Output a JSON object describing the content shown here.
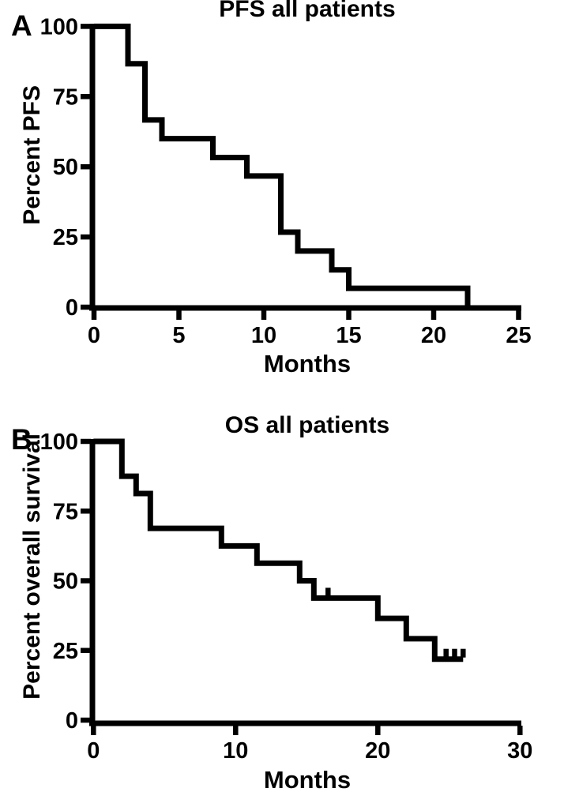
{
  "figure": {
    "background_color": "#ffffff",
    "ink_color": "#000000",
    "description": "Two-panel Kaplan-Meier survival figure"
  },
  "chart_data": [
    {
      "type": "line",
      "subtype": "kaplan-meier-step",
      "panel": "A",
      "title": "PFS all patients",
      "xlabel": "Months",
      "ylabel": "Percent PFS",
      "xlim": [
        0,
        25
      ],
      "ylim": [
        0,
        100
      ],
      "xticks": [
        0,
        5,
        10,
        15,
        20,
        25
      ],
      "yticks": [
        0,
        25,
        50,
        75,
        100
      ],
      "grid": false,
      "legend": "none",
      "start_value": 100,
      "drop_events": [
        [
          2,
          86.7
        ],
        [
          3,
          66.7
        ],
        [
          4,
          60
        ],
        [
          7,
          53.3
        ],
        [
          9,
          46.7
        ],
        [
          11,
          26.7
        ],
        [
          12,
          20
        ],
        [
          14,
          13.3
        ],
        [
          15,
          6.7
        ],
        [
          22,
          0
        ]
      ],
      "curve_end_month": 22,
      "censor_marks": []
    },
    {
      "type": "line",
      "subtype": "kaplan-meier-step",
      "panel": "B",
      "title": "OS all patients",
      "xlabel": "Months",
      "ylabel": "Percent overall survival",
      "xlim": [
        0,
        30
      ],
      "ylim": [
        0,
        100
      ],
      "xticks": [
        0,
        10,
        20,
        30
      ],
      "yticks": [
        0,
        25,
        50,
        75,
        100
      ],
      "grid": false,
      "legend": "none",
      "start_value": 100,
      "drop_events": [
        [
          2,
          87.5
        ],
        [
          3,
          81.3
        ],
        [
          4,
          68.8
        ],
        [
          9,
          62.5
        ],
        [
          11.5,
          56.3
        ],
        [
          14.5,
          50
        ],
        [
          15.5,
          43.8
        ],
        [
          20,
          36.5
        ],
        [
          22,
          29.2
        ],
        [
          24,
          21.9
        ]
      ],
      "curve_end_month": 26,
      "censor_marks": [
        [
          16.5,
          43.8
        ],
        [
          24.8,
          21.9
        ],
        [
          25.4,
          21.9
        ],
        [
          26,
          21.9
        ]
      ]
    }
  ]
}
